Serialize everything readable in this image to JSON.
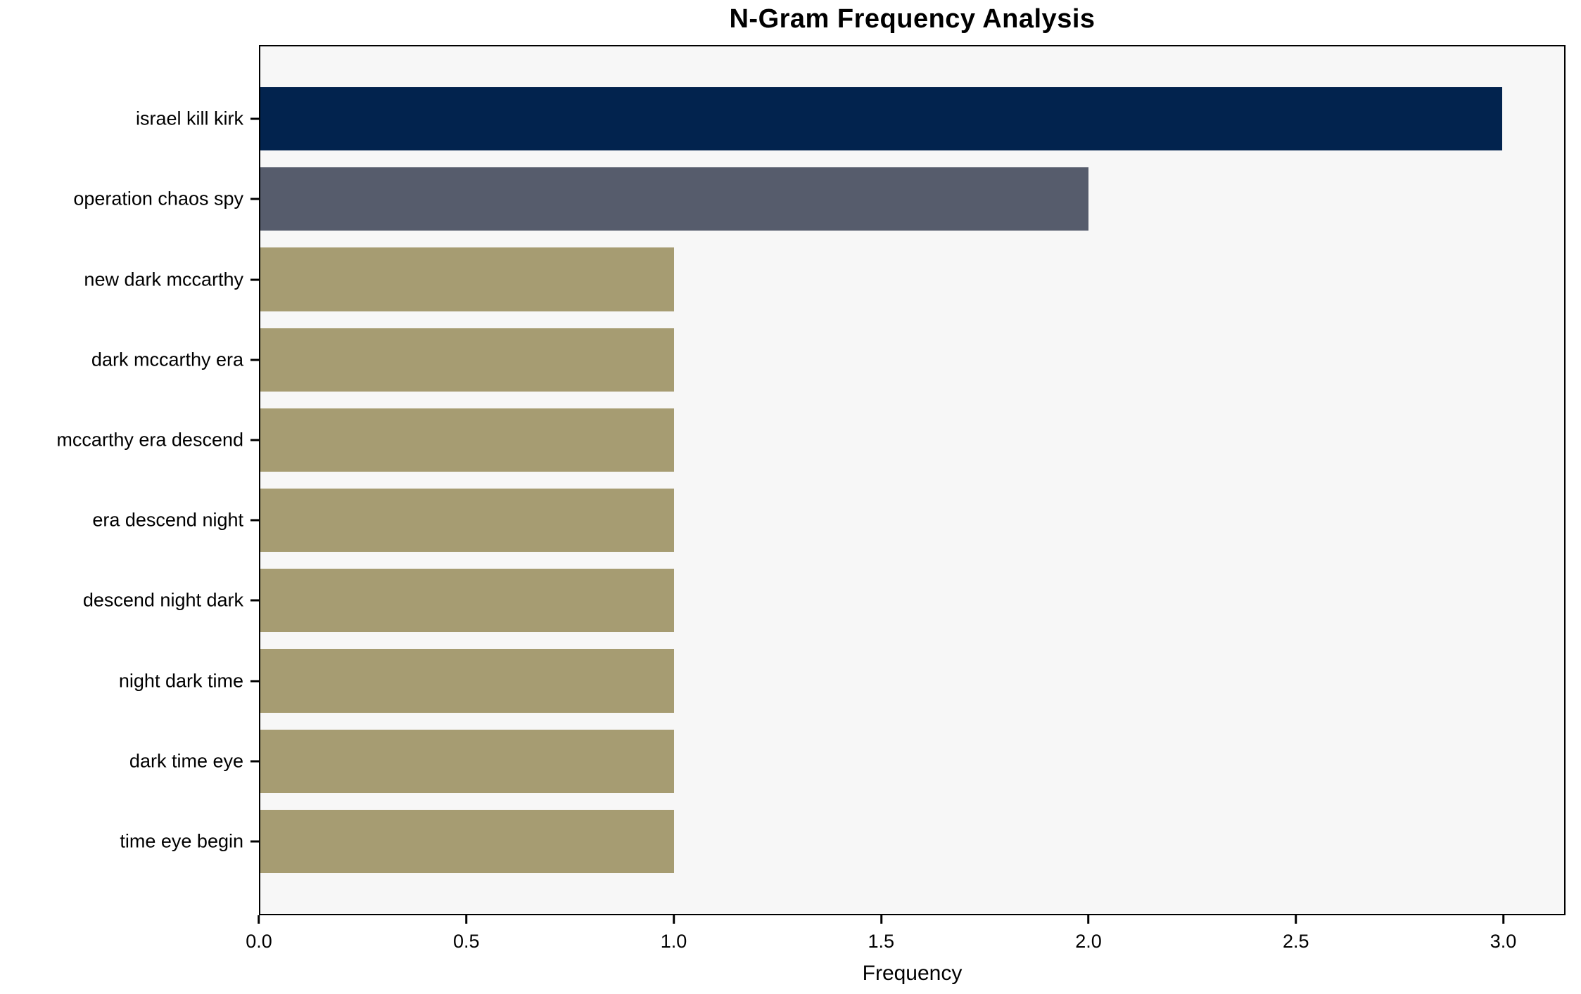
{
  "chart_data": {
    "type": "bar",
    "orientation": "horizontal",
    "title": "N-Gram Frequency Analysis",
    "xlabel": "Frequency",
    "categories": [
      "israel kill kirk",
      "operation chaos spy",
      "new dark mccarthy",
      "dark mccarthy era",
      "mccarthy era descend",
      "era descend night",
      "descend night dark",
      "night dark time",
      "dark time eye",
      "time eye begin"
    ],
    "values": [
      3,
      2,
      1,
      1,
      1,
      1,
      1,
      1,
      1,
      1
    ],
    "bar_colors": [
      "#02234e",
      "#565c6c",
      "#a69c72",
      "#a69c72",
      "#a69c72",
      "#a69c72",
      "#a69c72",
      "#a69c72",
      "#a69c72",
      "#a69c72"
    ],
    "xticks": [
      0.0,
      0.5,
      1.0,
      1.5,
      2.0,
      2.5,
      3.0
    ],
    "xtick_labels": [
      "0.0",
      "0.5",
      "1.0",
      "1.5",
      "2.0",
      "2.5",
      "3.0"
    ],
    "xlim": [
      0,
      3.15
    ],
    "grid": false,
    "legend_position": "none",
    "plot_background": "#f7f7f7",
    "figure_background": "#ffffff"
  }
}
